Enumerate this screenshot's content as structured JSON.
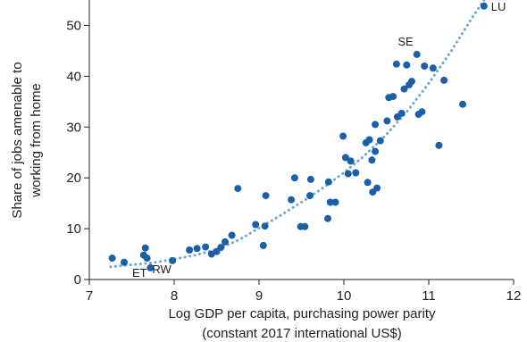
{
  "chart_data": {
    "type": "scatter",
    "xlabel_line1": "Log GDP per capita, purchasing power parity",
    "xlabel_line2": "(constant 2017 international US$)",
    "ylabel_line1": "Share of jobs amenable to",
    "ylabel_line2": "working from home",
    "xlim": [
      7,
      12
    ],
    "ylim": [
      0,
      55
    ],
    "xticks": [
      7,
      8,
      9,
      10,
      11,
      12
    ],
    "yticks": [
      0,
      10,
      20,
      30,
      40,
      50
    ],
    "grid": false,
    "point_color": "#1a5fa8",
    "trend_color": "#6aa6d6",
    "points": [
      {
        "x": 7.27,
        "y": 4.2
      },
      {
        "x": 7.41,
        "y": 3.4
      },
      {
        "x": 7.64,
        "y": 4.8
      },
      {
        "x": 7.66,
        "y": 6.2
      },
      {
        "x": 7.68,
        "y": 4.2
      },
      {
        "x": 7.72,
        "y": 2.3
      },
      {
        "x": 7.98,
        "y": 3.7
      },
      {
        "x": 8.18,
        "y": 5.8
      },
      {
        "x": 8.27,
        "y": 6.1
      },
      {
        "x": 8.37,
        "y": 6.4
      },
      {
        "x": 8.44,
        "y": 5.0
      },
      {
        "x": 8.5,
        "y": 5.5
      },
      {
        "x": 8.55,
        "y": 6.3
      },
      {
        "x": 8.6,
        "y": 7.4
      },
      {
        "x": 8.68,
        "y": 8.7
      },
      {
        "x": 8.75,
        "y": 17.9
      },
      {
        "x": 8.96,
        "y": 10.8
      },
      {
        "x": 9.05,
        "y": 6.7
      },
      {
        "x": 9.07,
        "y": 10.5
      },
      {
        "x": 9.08,
        "y": 16.5
      },
      {
        "x": 9.38,
        "y": 15.7
      },
      {
        "x": 9.42,
        "y": 20.0
      },
      {
        "x": 9.49,
        "y": 10.4
      },
      {
        "x": 9.54,
        "y": 10.4
      },
      {
        "x": 9.6,
        "y": 16.5
      },
      {
        "x": 9.61,
        "y": 19.7
      },
      {
        "x": 9.81,
        "y": 12.0
      },
      {
        "x": 9.82,
        "y": 19.2
      },
      {
        "x": 9.84,
        "y": 15.2
      },
      {
        "x": 9.9,
        "y": 15.2
      },
      {
        "x": 9.99,
        "y": 28.2
      },
      {
        "x": 10.02,
        "y": 24.0
      },
      {
        "x": 10.05,
        "y": 20.8
      },
      {
        "x": 10.08,
        "y": 23.3
      },
      {
        "x": 10.14,
        "y": 21.0
      },
      {
        "x": 10.26,
        "y": 26.9
      },
      {
        "x": 10.28,
        "y": 19.1
      },
      {
        "x": 10.3,
        "y": 27.5
      },
      {
        "x": 10.33,
        "y": 23.5
      },
      {
        "x": 10.34,
        "y": 17.2
      },
      {
        "x": 10.39,
        "y": 18.0
      },
      {
        "x": 10.37,
        "y": 25.2
      },
      {
        "x": 10.37,
        "y": 30.5
      },
      {
        "x": 10.43,
        "y": 27.3
      },
      {
        "x": 10.51,
        "y": 31.2
      },
      {
        "x": 10.53,
        "y": 35.8
      },
      {
        "x": 10.58,
        "y": 36.0
      },
      {
        "x": 10.62,
        "y": 42.4
      },
      {
        "x": 10.63,
        "y": 32.0
      },
      {
        "x": 10.68,
        "y": 32.7
      },
      {
        "x": 10.71,
        "y": 37.5
      },
      {
        "x": 10.74,
        "y": 42.2
      },
      {
        "x": 10.77,
        "y": 38.3
      },
      {
        "x": 10.8,
        "y": 39.0
      },
      {
        "x": 10.86,
        "y": 44.3
      },
      {
        "x": 10.88,
        "y": 32.5
      },
      {
        "x": 10.92,
        "y": 33.0
      },
      {
        "x": 10.95,
        "y": 42.0
      },
      {
        "x": 11.05,
        "y": 41.6
      },
      {
        "x": 11.12,
        "y": 26.4
      },
      {
        "x": 11.18,
        "y": 39.2
      },
      {
        "x": 11.4,
        "y": 34.5
      },
      {
        "x": 11.65,
        "y": 53.8
      }
    ],
    "trend": [
      {
        "x": 7.25,
        "y": 2.5
      },
      {
        "x": 7.5,
        "y": 2.9
      },
      {
        "x": 7.75,
        "y": 3.3
      },
      {
        "x": 8.0,
        "y": 4.0
      },
      {
        "x": 8.25,
        "y": 4.8
      },
      {
        "x": 8.5,
        "y": 5.9
      },
      {
        "x": 8.75,
        "y": 7.7
      },
      {
        "x": 9.0,
        "y": 10.1
      },
      {
        "x": 9.25,
        "y": 12.6
      },
      {
        "x": 9.5,
        "y": 15.2
      },
      {
        "x": 9.75,
        "y": 18.0
      },
      {
        "x": 10.0,
        "y": 21.0
      },
      {
        "x": 10.25,
        "y": 24.5
      },
      {
        "x": 10.5,
        "y": 28.5
      },
      {
        "x": 10.75,
        "y": 33.2
      },
      {
        "x": 11.0,
        "y": 38.6
      },
      {
        "x": 11.25,
        "y": 44.6
      },
      {
        "x": 11.5,
        "y": 51.2
      },
      {
        "x": 11.75,
        "y": 57.5
      }
    ],
    "annotations": [
      {
        "text": "LU",
        "x": 11.65,
        "y": 53.8,
        "anchor": "start"
      },
      {
        "text": "SE",
        "x": 10.86,
        "y": 44.3,
        "anchor": "end"
      },
      {
        "text": "ET",
        "x": 7.68,
        "y": 2.3,
        "anchor": "end"
      },
      {
        "text": "RW",
        "x": 7.72,
        "y": 2.3,
        "anchor": "start"
      }
    ]
  }
}
